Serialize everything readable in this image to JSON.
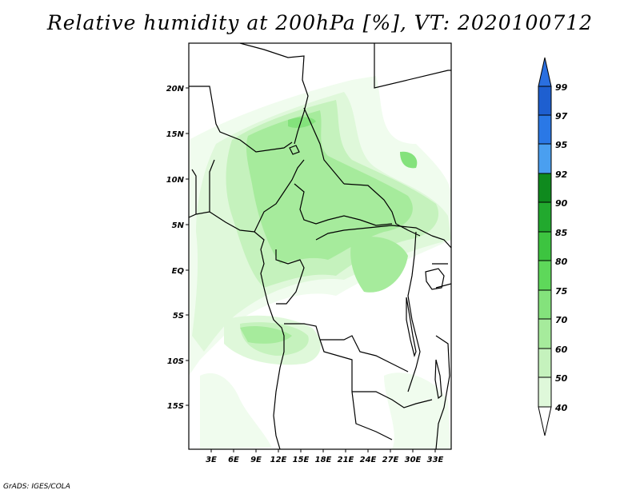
{
  "title": "Relative humidity at 200hPa [%], VT: 2020100712",
  "credit": "GrADS: IGES/COLA",
  "map": {
    "variable": "Relative humidity",
    "level": "200hPa",
    "units": "%",
    "valid_time": "2020100712",
    "lat_labels": [
      "20N",
      "15N",
      "10N",
      "5N",
      "EQ",
      "5S",
      "10S",
      "15S"
    ],
    "lon_labels": [
      "3E",
      "6E",
      "9E",
      "12E",
      "15E",
      "18E",
      "21E",
      "24E",
      "27E",
      "30E",
      "33E"
    ]
  },
  "colorbar": {
    "levels": [
      "99",
      "97",
      "95",
      "92",
      "90",
      "85",
      "80",
      "75",
      "70",
      "60",
      "50",
      "40"
    ],
    "colors": [
      "#1e5fd0",
      "#2a78e6",
      "#4a9ff0",
      "#0f8a1e",
      "#22a92e",
      "#3dc440",
      "#5ed85a",
      "#84e27c",
      "#a6eb9c",
      "#c5f2bd",
      "#dff8da",
      "#f0fcee"
    ],
    "top_color": "#2a6fe0",
    "bottom_color": "#ffffff"
  }
}
